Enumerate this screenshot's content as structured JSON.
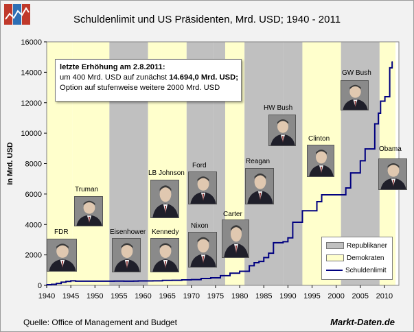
{
  "title": "Schuldenlimit und US Präsidenten, Mrd. USD; 1940 - 2011",
  "source": "Quelle: Office of Management and Budget",
  "brand": "Markt-Daten.de",
  "info": {
    "line1": "letzte Erhöhung am 2.8.2011:",
    "line2_pre": "um 400 Mrd. USD auf zunächst ",
    "line2_bold": "14.694,0 Mrd. USD;",
    "line3": "Option auf stufenweise weitere 2000 Mrd. USD"
  },
  "legend": {
    "rep": "Republikaner",
    "dem": "Demokraten",
    "line": "Schuldenlimit"
  },
  "colors": {
    "republican": "#c0c0c0",
    "democrat": "#ffffcc",
    "line": "#000080",
    "background": "#f2f2f2"
  },
  "presidents": [
    {
      "name": "FDR",
      "party": "D",
      "start": 1940,
      "end": 1945.3,
      "icon": "portrait-fdr"
    },
    {
      "name": "Truman",
      "party": "D",
      "start": 1945.3,
      "end": 1953,
      "icon": "portrait-truman"
    },
    {
      "name": "Eisenhower",
      "party": "R",
      "start": 1953,
      "end": 1961,
      "icon": "portrait-eisenhower"
    },
    {
      "name": "Kennedy",
      "party": "D",
      "start": 1961,
      "end": 1963.9,
      "icon": "portrait-kennedy"
    },
    {
      "name": "LB Johnson",
      "party": "D",
      "start": 1963.9,
      "end": 1969,
      "icon": "portrait-johnson"
    },
    {
      "name": "Nixon",
      "party": "R",
      "start": 1969,
      "end": 1974.6,
      "icon": "portrait-nixon"
    },
    {
      "name": "Ford",
      "party": "R",
      "start": 1974.6,
      "end": 1977,
      "icon": "portrait-ford"
    },
    {
      "name": "Carter",
      "party": "D",
      "start": 1977,
      "end": 1981,
      "icon": "portrait-carter"
    },
    {
      "name": "Reagan",
      "party": "R",
      "start": 1981,
      "end": 1989,
      "icon": "portrait-reagan"
    },
    {
      "name": "HW Bush",
      "party": "R",
      "start": 1989,
      "end": 1993,
      "icon": "portrait-hwbush"
    },
    {
      "name": "Clinton",
      "party": "D",
      "start": 1993,
      "end": 2001,
      "icon": "portrait-clinton"
    },
    {
      "name": "GW Bush",
      "party": "R",
      "start": 2001,
      "end": 2009,
      "icon": "portrait-gwbush"
    },
    {
      "name": "Obama",
      "party": "D",
      "start": 2009,
      "end": 2012.3,
      "icon": "portrait-obama"
    }
  ],
  "chart_data": {
    "type": "line",
    "title": "Schuldenlimit und US Präsidenten, Mrd. USD; 1940 - 2011",
    "xlabel": "",
    "ylabel": "in Mrd. USD",
    "xlim": [
      1940,
      2013
    ],
    "ylim": [
      0,
      16000
    ],
    "xticks": [
      1940,
      1945,
      1950,
      1955,
      1960,
      1965,
      1970,
      1975,
      1980,
      1985,
      1990,
      1995,
      2000,
      2005,
      2010
    ],
    "yticks": [
      0,
      2000,
      4000,
      6000,
      8000,
      10000,
      12000,
      14000,
      16000
    ],
    "legend_position": "bottom-right",
    "series": [
      {
        "name": "Schuldenlimit",
        "x": [
          1940,
          1941,
          1942,
          1943,
          1944,
          1945,
          1946,
          1950,
          1954,
          1956,
          1958,
          1959,
          1962,
          1964,
          1966,
          1968,
          1970,
          1972,
          1974,
          1976,
          1978,
          1980,
          1982,
          1983,
          1984,
          1985,
          1986,
          1987,
          1988,
          1989,
          1990,
          1991,
          1993,
          1996,
          1997,
          2002,
          2003,
          2004,
          2005,
          2006,
          2007,
          2008,
          2008.75,
          2009.2,
          2010.1,
          2011.1,
          2011.6
        ],
        "y": [
          45,
          65,
          125,
          210,
          260,
          300,
          275,
          275,
          281,
          278,
          283,
          295,
          300,
          324,
          330,
          358,
          377,
          450,
          495,
          636,
          798,
          925,
          1290,
          1490,
          1573,
          1823,
          2111,
          2800,
          2800,
          2870,
          3123,
          4145,
          4900,
          5500,
          5950,
          6400,
          7384,
          7384,
          8184,
          8965,
          8965,
          10615,
          11315,
          12104,
          12394,
          14294,
          14694
        ]
      }
    ]
  }
}
